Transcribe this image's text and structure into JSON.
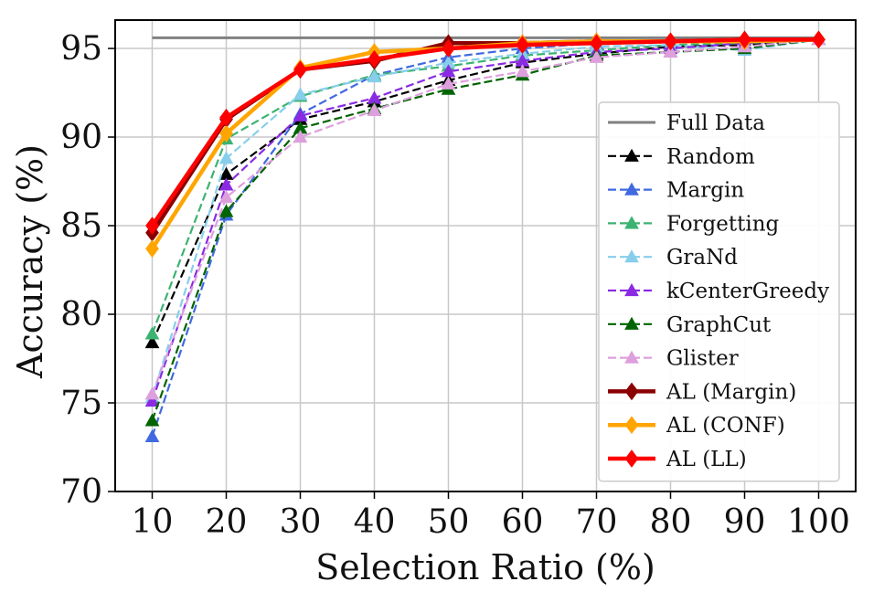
{
  "chart_data": {
    "type": "line",
    "title": "",
    "xlabel": "Selection Ratio (%)",
    "ylabel": "Accuracy (%)",
    "x": [
      10,
      20,
      30,
      40,
      50,
      60,
      70,
      80,
      90,
      100
    ],
    "xticks": [
      "10",
      "20",
      "30",
      "40",
      "50",
      "60",
      "70",
      "80",
      "90",
      "100"
    ],
    "yticks": [
      "70",
      "75",
      "80",
      "85",
      "90",
      "95"
    ],
    "xlim": [
      5,
      105
    ],
    "ylim": [
      70,
      96.6
    ],
    "grid": true,
    "legend_position": "bottom-right",
    "reference_line": {
      "name": "Full Data",
      "value": 95.6,
      "color": "#808080"
    },
    "series": [
      {
        "name": "Random",
        "color": "#000000",
        "marker": "triangle",
        "dashed": true,
        "thick": false,
        "values": [
          78.4,
          87.9,
          91.0,
          92.0,
          93.2,
          94.2,
          94.7,
          95.1,
          95.2,
          95.5
        ]
      },
      {
        "name": "Margin",
        "color": "#4169e1",
        "marker": "triangle",
        "dashed": true,
        "thick": false,
        "values": [
          73.1,
          85.6,
          91.3,
          93.5,
          94.5,
          95.0,
          95.3,
          95.4,
          95.5,
          95.5
        ]
      },
      {
        "name": "Forgetting",
        "color": "#3cb371",
        "marker": "triangle",
        "dashed": true,
        "thick": false,
        "values": [
          78.9,
          89.9,
          92.3,
          93.5,
          94.0,
          94.6,
          94.9,
          95.2,
          95.3,
          95.5
        ]
      },
      {
        "name": "GraNd",
        "color": "#87ceeb",
        "marker": "triangle",
        "dashed": true,
        "thick": false,
        "values": [
          75.3,
          88.8,
          92.4,
          93.4,
          94.2,
          94.7,
          95.1,
          95.2,
          94.9,
          95.5
        ]
      },
      {
        "name": "kCenterGreedy",
        "color": "#8a2be2",
        "marker": "triangle",
        "dashed": true,
        "thick": false,
        "values": [
          75.1,
          87.3,
          91.2,
          92.2,
          93.7,
          94.3,
          94.8,
          95.0,
          95.3,
          95.5
        ]
      },
      {
        "name": "GraphCut",
        "color": "#006400",
        "marker": "triangle",
        "dashed": true,
        "thick": false,
        "values": [
          74.0,
          85.8,
          90.5,
          91.6,
          92.7,
          93.5,
          94.6,
          94.8,
          95.0,
          95.5
        ]
      },
      {
        "name": "Glister",
        "color": "#dda0dd",
        "marker": "triangle",
        "dashed": true,
        "thick": false,
        "values": [
          75.5,
          86.6,
          90.0,
          91.5,
          93.0,
          93.7,
          94.5,
          94.8,
          95.1,
          95.5
        ]
      },
      {
        "name": "AL (Margin)",
        "color": "#8b0000",
        "marker": "diamond",
        "dashed": false,
        "thick": true,
        "values": [
          84.6,
          91.0,
          93.8,
          94.3,
          95.3,
          95.3,
          95.4,
          95.4,
          95.5,
          95.5
        ]
      },
      {
        "name": "AL (CONF)",
        "color": "#ffa500",
        "marker": "diamond",
        "dashed": false,
        "thick": true,
        "values": [
          83.7,
          90.2,
          93.9,
          94.8,
          95.0,
          95.3,
          95.4,
          95.4,
          95.4,
          95.5
        ]
      },
      {
        "name": "AL (LL)",
        "color": "#ff0000",
        "marker": "diamond",
        "dashed": false,
        "thick": true,
        "values": [
          85.0,
          91.1,
          93.8,
          94.4,
          95.0,
          95.2,
          95.3,
          95.4,
          95.5,
          95.5
        ]
      }
    ]
  }
}
